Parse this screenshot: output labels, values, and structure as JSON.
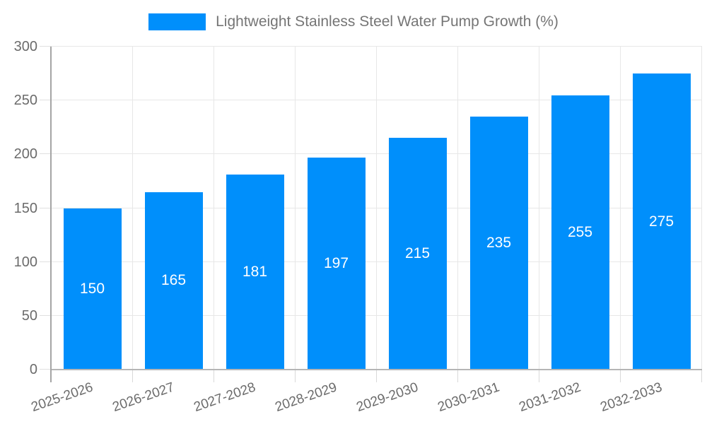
{
  "legend": {
    "label": "Lightweight Stainless Steel Water Pump Growth (%)"
  },
  "chart_data": {
    "type": "bar",
    "title": "",
    "categories": [
      "2025-2026",
      "2026-2027",
      "2027-2028",
      "2028-2029",
      "2029-2030",
      "2030-2031",
      "2031-2032",
      "2032-2033"
    ],
    "series": [
      {
        "name": "Lightweight Stainless Steel Water Pump Growth (%)",
        "values": [
          150,
          165,
          181,
          197,
          215,
          235,
          255,
          275
        ]
      }
    ],
    "xlabel": "",
    "ylabel": "",
    "ylim": [
      0,
      300
    ],
    "yticks": [
      0,
      50,
      100,
      150,
      200,
      250,
      300
    ],
    "grid": true,
    "legend_position": "top-center",
    "data_labels": {
      "visible": true,
      "position": "center",
      "color": "#ffffff"
    }
  },
  "colors": {
    "bar": "#008FFB",
    "gridline": "#e7e7e7",
    "y_axis_line": "#a5a5a5",
    "x_axis_line": "#b5b5b5",
    "tick_left": "#e0e0e0",
    "tick_bottom": "#d9d9d9",
    "axis_label_text": "#6b6b6b",
    "legend_text": "#757575",
    "data_label_text": "#ffffff",
    "background": "#ffffff"
  }
}
